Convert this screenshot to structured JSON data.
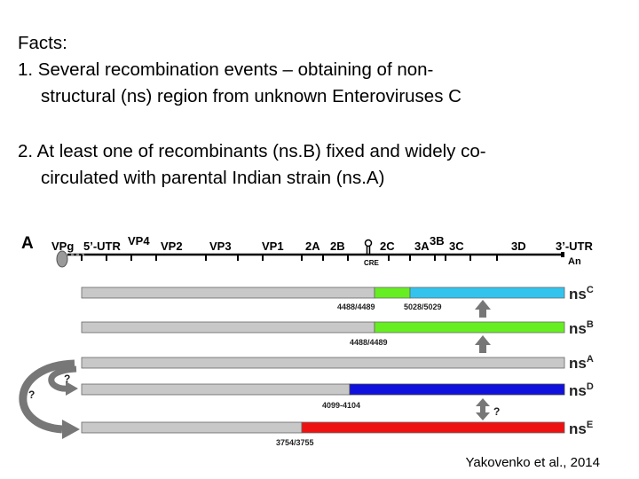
{
  "facts": {
    "heading": "Facts:",
    "item1_line1": "1. Several recombination events – obtaining of non-",
    "item1_line2": "structural (ns) region from unknown Enteroviruses C",
    "item2_line1": "2. At least one of recombinants (ns.B) fixed and widely co-",
    "item2_line2": "circulated with parental Indian strain (ns.A)"
  },
  "diagram": {
    "panel_label": "A",
    "genome_labels": {
      "vpg": "VPg",
      "utr5": "5’-UTR",
      "vp4": "VP4",
      "vp2": "VP2",
      "vp3": "VP3",
      "vp1": "VP1",
      "p2a": "2A",
      "p2b": "2B",
      "p2c": "2C",
      "p3a": "3A",
      "p3b": "3B",
      "p3c": "3C",
      "p3d": "3D",
      "utr3": "3’-UTR",
      "cre": "CRE",
      "polya": "An"
    },
    "strains": [
      {
        "label": "ns",
        "sup": "C",
        "breakpoints": [
          "4488/4489",
          "5028/5029"
        ]
      },
      {
        "label": "ns",
        "sup": "B",
        "breakpoints": [
          "4488/4489"
        ]
      },
      {
        "label": "ns",
        "sup": "A",
        "breakpoints": []
      },
      {
        "label": "ns",
        "sup": "D",
        "breakpoints": [
          "4099-4104"
        ]
      },
      {
        "label": "ns",
        "sup": "E",
        "breakpoints": [
          "3754/3755"
        ]
      }
    ],
    "question_marks": [
      "?",
      "?",
      "?"
    ],
    "colors": {
      "gray": "#c8c8c8",
      "green": "#66ee22",
      "cyan": "#33c4ee",
      "blue": "#1111dd",
      "red": "#ee1111",
      "arrow": "#777777"
    }
  },
  "credit": "Yakovenko et al., 2014"
}
